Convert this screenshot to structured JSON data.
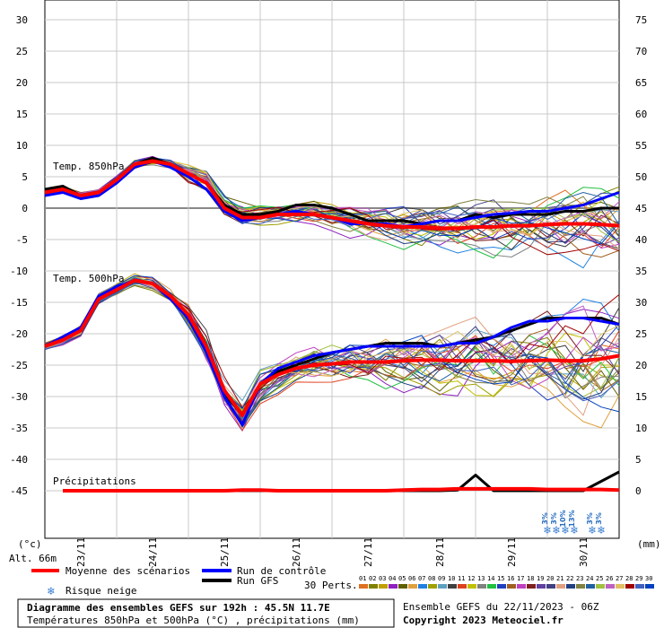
{
  "chart_data": {
    "type": "line",
    "left_axis": {
      "unit": "(°c)",
      "ticks": [
        30,
        25,
        20,
        15,
        10,
        5,
        0,
        -5,
        -10,
        -15,
        -20,
        -25,
        -30,
        -35,
        -40,
        -45
      ]
    },
    "right_axis": {
      "unit": "(mm)",
      "ticks": [
        75,
        70,
        65,
        60,
        55,
        50,
        45,
        40,
        35,
        30,
        25,
        20,
        15,
        10,
        5,
        0
      ]
    },
    "x_ticks": [
      "23/11",
      "24/11",
      "25/11",
      "26/11",
      "27/11",
      "28/11",
      "29/11",
      "30/11"
    ],
    "altitude": "Alt. 66m",
    "panels": {
      "t850": "Temp. 850hPa",
      "t500": "Temp. 500hPa",
      "precip": "Précipitations"
    },
    "x_hours": [
      0,
      6,
      12,
      18,
      24,
      30,
      36,
      42,
      48,
      54,
      60,
      66,
      72,
      78,
      84,
      90,
      96,
      102,
      108,
      114,
      120,
      126,
      132,
      138,
      144,
      150,
      156,
      162,
      168,
      174,
      180,
      186,
      192
    ],
    "series": [
      {
        "name": "Moyenne des scénarios",
        "panel": "t850",
        "color": "#ff0000",
        "values": [
          2.5,
          3,
          2,
          2.5,
          4.5,
          7,
          7.5,
          7,
          5.5,
          4,
          0,
          -1.5,
          -1.5,
          -1,
          -1,
          -1,
          -1.5,
          -2,
          -2.5,
          -2.8,
          -3,
          -3,
          -3.2,
          -3.2,
          -3,
          -3,
          -2.8,
          -2.8,
          -2.6,
          -2.5,
          -2.5,
          -2.6,
          -2.8
        ]
      },
      {
        "name": "Run de contrôle",
        "panel": "t850",
        "color": "#0000ff",
        "values": [
          2,
          2.5,
          1.5,
          2,
          4,
          6.5,
          7.5,
          6.5,
          5,
          3,
          -0.5,
          -2,
          -1.5,
          -1,
          -0.5,
          -1,
          -1.5,
          -2.5,
          -2.5,
          -2.5,
          -3,
          -2.5,
          -2,
          -2,
          -1.5,
          -1,
          -0.8,
          -0.5,
          -0.5,
          0,
          0.5,
          1.5,
          2.5
        ]
      },
      {
        "name": "Run GFS",
        "panel": "t850",
        "color": "#000000",
        "values": [
          3,
          3.5,
          2,
          2.5,
          4.5,
          7,
          8,
          7,
          5.5,
          4,
          0.5,
          -1,
          -1,
          -0.5,
          0.5,
          0.5,
          0,
          -1,
          -2,
          -2,
          -2,
          -2.5,
          -2,
          -2,
          -1,
          -1.5,
          -1,
          -1,
          -1,
          -0.5,
          -0.5,
          0,
          0
        ]
      },
      {
        "name": "Moyenne des scénarios",
        "panel": "t500",
        "color": "#ff0000",
        "values": [
          -22,
          -21,
          -19.5,
          -14.5,
          -13,
          -11.5,
          -12,
          -14,
          -17,
          -22,
          -29,
          -33,
          -28,
          -26.5,
          -25.5,
          -25,
          -24.8,
          -24.5,
          -24.5,
          -24.5,
          -24.3,
          -24.2,
          -24.2,
          -24.3,
          -24.3,
          -24.3,
          -24.4,
          -24.3,
          -24.2,
          -24.3,
          -24.3,
          -24,
          -23.5
        ]
      },
      {
        "name": "Run de contrôle",
        "panel": "t500",
        "color": "#0000ff",
        "values": [
          -22,
          -20.5,
          -19,
          -14,
          -12.5,
          -11.5,
          -12,
          -14.5,
          -17.5,
          -23,
          -30,
          -34.5,
          -28,
          -25.5,
          -24.5,
          -23.5,
          -23,
          -22.5,
          -22,
          -22,
          -22,
          -22,
          -22,
          -21.5,
          -21.5,
          -20.5,
          -19,
          -18,
          -18,
          -17.5,
          -17.5,
          -18,
          -18.5
        ]
      },
      {
        "name": "Run GFS",
        "panel": "t500",
        "color": "#000000",
        "values": [
          -22,
          -20.5,
          -19,
          -14.5,
          -13,
          -11.5,
          -12,
          -14,
          -17,
          -23,
          -29.5,
          -33,
          -28,
          -26,
          -25,
          -24,
          -23,
          -22.5,
          -22,
          -21.5,
          -21.5,
          -21.5,
          -22,
          -21.5,
          -21,
          -20.5,
          -19.5,
          -18.5,
          -17.5,
          -17.5,
          -17.5,
          -17.5,
          -18.5
        ]
      },
      {
        "name": "Moyenne des scénarios",
        "panel": "precip",
        "color": "#ff0000",
        "unit": "mm",
        "values": [
          0,
          0,
          0,
          0,
          0,
          0,
          0,
          0,
          0,
          0,
          0,
          0.1,
          0.1,
          0,
          0,
          0,
          0,
          0,
          0,
          0,
          0.1,
          0.2,
          0.2,
          0.3,
          0.3,
          0.3,
          0.3,
          0.3,
          0.2,
          0.2,
          0.2,
          0.2,
          0.1
        ]
      },
      {
        "name": "Run GFS",
        "panel": "precip",
        "color": "#000000",
        "unit": "mm",
        "values": [
          0,
          0,
          0,
          0,
          0,
          0,
          0,
          0,
          0,
          0,
          0,
          0,
          0,
          0,
          0,
          0,
          0,
          0,
          0,
          0,
          0,
          0,
          0,
          0.1,
          2.5,
          0,
          0,
          0,
          0,
          0,
          0,
          1.5,
          3
        ]
      }
    ],
    "snow_risk": [
      {
        "date_hour": 168,
        "label": "3%"
      },
      {
        "date_hour": 171,
        "label": "3%"
      },
      {
        "date_hour": 174,
        "label": "10%"
      },
      {
        "date_hour": 177,
        "label": "13%"
      },
      {
        "date_hour": 183,
        "label": "3%"
      },
      {
        "date_hour": 186,
        "label": "3%"
      }
    ]
  },
  "legend": {
    "mean": "Moyenne des scénarios",
    "control": "Run de contrôle",
    "gfs": "Run GFS",
    "snow": "Risque neige",
    "perts_label": "30 Perts.",
    "perts": [
      "01",
      "02",
      "03",
      "04",
      "05",
      "06",
      "07",
      "08",
      "09",
      "10",
      "11",
      "12",
      "13",
      "14",
      "15",
      "16",
      "17",
      "18",
      "19",
      "20",
      "21",
      "22",
      "23",
      "24",
      "25",
      "26",
      "27",
      "28",
      "29",
      "30"
    ],
    "pert_colors": [
      "#e07020",
      "#808000",
      "#c0a000",
      "#9020c0",
      "#606000",
      "#e0a040",
      "#2080e0",
      "#a0a000",
      "#60a0c0",
      "#404040",
      "#e04020",
      "#c0c000",
      "#808080",
      "#20c040",
      "#2040c0",
      "#a06020",
      "#c040c0",
      "#802020",
      "#6040a0",
      "#404080",
      "#e0a080",
      "#204080",
      "#808040",
      "#2060a0",
      "#a0c040",
      "#c060c0",
      "#e0c060",
      "#a00000",
      "#4060c0",
      "#0040c0"
    ],
    "mean_color": "#ff0000",
    "control_color": "#0000ff",
    "gfs_color": "#000000"
  },
  "footer": {
    "title": "Diagramme des ensembles GEFS sur 192h : 45.5N 11.7E",
    "subtitle": "Températures 850hPa et 500hPa (°C) , précipitations (mm)",
    "run": "Ensemble GEFS du 22/11/2023 - 06Z",
    "copyright": "Copyright 2023 Meteociel.fr"
  }
}
